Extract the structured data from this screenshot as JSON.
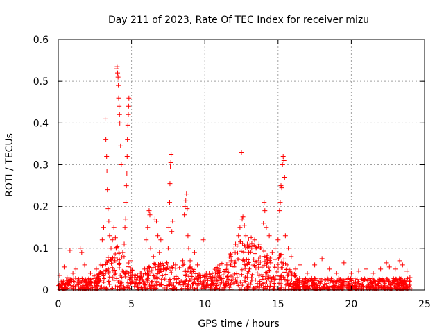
{
  "chart_data": {
    "type": "scatter",
    "title": "Day 211 of 2023, Rate Of TEC Index for receiver mizu",
    "xlabel": "GPS time / hours",
    "ylabel": "ROTI / TECUs",
    "xlim": [
      0,
      25
    ],
    "ylim": [
      0,
      0.6
    ],
    "x_ticks": [
      0,
      5,
      10,
      15,
      20,
      25
    ],
    "x_tick_labels": [
      "0",
      "5",
      "10",
      "15",
      "20",
      "25"
    ],
    "y_ticks": [
      0,
      0.1,
      0.2,
      0.3,
      0.4,
      0.5,
      0.6
    ],
    "y_tick_labels": [
      "0",
      "0.1",
      "0.2",
      "0.3",
      "0.4",
      "0.5",
      "0.6"
    ],
    "grid": true,
    "legend": "none",
    "marker": "plus",
    "series_color": "#ff0000",
    "series": [
      {
        "points": [
          [
            0.1,
            0.035
          ],
          [
            0.2,
            0.02
          ],
          [
            0.4,
            0.055
          ],
          [
            0.6,
            0.03
          ],
          [
            0.8,
            0.095
          ],
          [
            1.0,
            0.04
          ],
          [
            1.2,
            0.05
          ],
          [
            1.5,
            0.1
          ],
          [
            1.6,
            0.09
          ],
          [
            1.8,
            0.06
          ],
          [
            2.2,
            0.04
          ],
          [
            2.6,
            0.05
          ],
          [
            2.9,
            0.06
          ],
          [
            3.0,
            0.12
          ],
          [
            3.1,
            0.15
          ],
          [
            3.2,
            0.41
          ],
          [
            3.25,
            0.36
          ],
          [
            3.3,
            0.32
          ],
          [
            3.32,
            0.285
          ],
          [
            3.35,
            0.24
          ],
          [
            3.4,
            0.195
          ],
          [
            3.45,
            0.165
          ],
          [
            3.5,
            0.13
          ],
          [
            3.6,
            0.1
          ],
          [
            3.7,
            0.12
          ],
          [
            3.8,
            0.15
          ],
          [
            3.9,
            0.125
          ],
          [
            3.95,
            0.1
          ],
          [
            4.0,
            0.53
          ],
          [
            4.02,
            0.535
          ],
          [
            4.05,
            0.52
          ],
          [
            4.08,
            0.51
          ],
          [
            4.1,
            0.49
          ],
          [
            4.12,
            0.46
          ],
          [
            4.15,
            0.44
          ],
          [
            4.18,
            0.42
          ],
          [
            4.2,
            0.4
          ],
          [
            4.25,
            0.345
          ],
          [
            4.3,
            0.3
          ],
          [
            4.4,
            0.09
          ],
          [
            4.5,
            0.11
          ],
          [
            4.55,
            0.15
          ],
          [
            4.6,
            0.17
          ],
          [
            4.62,
            0.21
          ],
          [
            4.65,
            0.25
          ],
          [
            4.68,
            0.28
          ],
          [
            4.7,
            0.32
          ],
          [
            4.72,
            0.36
          ],
          [
            4.75,
            0.395
          ],
          [
            4.78,
            0.42
          ],
          [
            4.8,
            0.44
          ],
          [
            4.82,
            0.46
          ],
          [
            4.9,
            0.07
          ],
          [
            5.2,
            0.03
          ],
          [
            5.6,
            0.04
          ],
          [
            5.9,
            0.05
          ],
          [
            6.0,
            0.12
          ],
          [
            6.1,
            0.15
          ],
          [
            6.2,
            0.19
          ],
          [
            6.25,
            0.18
          ],
          [
            6.3,
            0.1
          ],
          [
            6.5,
            0.08
          ],
          [
            6.6,
            0.17
          ],
          [
            6.7,
            0.165
          ],
          [
            6.8,
            0.13
          ],
          [
            6.9,
            0.09
          ],
          [
            7.0,
            0.12
          ],
          [
            7.2,
            0.05
          ],
          [
            7.5,
            0.1
          ],
          [
            7.55,
            0.15
          ],
          [
            7.6,
            0.21
          ],
          [
            7.62,
            0.255
          ],
          [
            7.65,
            0.295
          ],
          [
            7.68,
            0.305
          ],
          [
            7.7,
            0.325
          ],
          [
            7.75,
            0.14
          ],
          [
            7.8,
            0.165
          ],
          [
            8.0,
            0.06
          ],
          [
            8.5,
            0.07
          ],
          [
            8.6,
            0.18
          ],
          [
            8.65,
            0.2
          ],
          [
            8.7,
            0.215
          ],
          [
            8.75,
            0.23
          ],
          [
            8.8,
            0.195
          ],
          [
            8.85,
            0.13
          ],
          [
            8.9,
            0.1
          ],
          [
            9.0,
            0.07
          ],
          [
            9.3,
            0.09
          ],
          [
            9.5,
            0.06
          ],
          [
            9.9,
            0.12
          ],
          [
            10.1,
            0.04
          ],
          [
            10.5,
            0.03
          ],
          [
            11.0,
            0.035
          ],
          [
            11.5,
            0.06
          ],
          [
            11.8,
            0.07
          ],
          [
            12.0,
            0.09
          ],
          [
            12.1,
            0.11
          ],
          [
            12.3,
            0.13
          ],
          [
            12.4,
            0.15
          ],
          [
            12.5,
            0.33
          ],
          [
            12.55,
            0.17
          ],
          [
            12.6,
            0.175
          ],
          [
            12.7,
            0.155
          ],
          [
            12.8,
            0.13
          ],
          [
            12.9,
            0.11
          ],
          [
            13.0,
            0.09
          ],
          [
            13.2,
            0.1
          ],
          [
            13.4,
            0.12
          ],
          [
            13.5,
            0.1
          ],
          [
            13.7,
            0.11
          ],
          [
            14.0,
            0.16
          ],
          [
            14.05,
            0.21
          ],
          [
            14.1,
            0.19
          ],
          [
            14.2,
            0.15
          ],
          [
            14.4,
            0.13
          ],
          [
            14.6,
            0.09
          ],
          [
            14.8,
            0.1
          ],
          [
            15.0,
            0.12
          ],
          [
            15.1,
            0.19
          ],
          [
            15.15,
            0.21
          ],
          [
            15.2,
            0.25
          ],
          [
            15.25,
            0.245
          ],
          [
            15.3,
            0.3
          ],
          [
            15.35,
            0.32
          ],
          [
            15.4,
            0.31
          ],
          [
            15.45,
            0.27
          ],
          [
            15.5,
            0.13
          ],
          [
            15.7,
            0.1
          ],
          [
            15.9,
            0.08
          ],
          [
            16.2,
            0.05
          ],
          [
            16.5,
            0.06
          ],
          [
            17.0,
            0.04
          ],
          [
            17.5,
            0.06
          ],
          [
            18.0,
            0.075
          ],
          [
            18.5,
            0.05
          ],
          [
            19.0,
            0.04
          ],
          [
            19.5,
            0.065
          ],
          [
            20.0,
            0.04
          ],
          [
            20.5,
            0.045
          ],
          [
            21.0,
            0.05
          ],
          [
            21.5,
            0.04
          ],
          [
            22.0,
            0.05
          ],
          [
            22.4,
            0.065
          ],
          [
            22.6,
            0.055
          ],
          [
            23.0,
            0.05
          ],
          [
            23.3,
            0.07
          ],
          [
            23.5,
            0.06
          ],
          [
            23.8,
            0.045
          ],
          [
            24.0,
            0.03
          ]
        ]
      }
    ]
  }
}
